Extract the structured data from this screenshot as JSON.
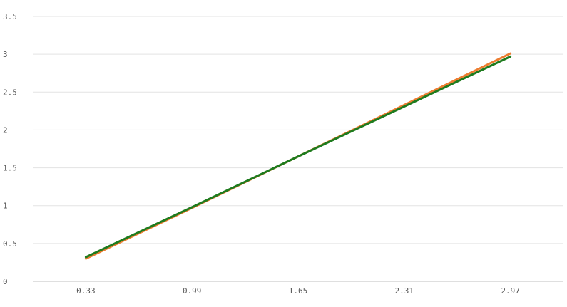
{
  "chart_data": {
    "type": "line",
    "title": "",
    "xlabel": "",
    "ylabel": "",
    "categories": [
      "0.33",
      "0.99",
      "1.65",
      "2.31",
      "2.97"
    ],
    "ylim": [
      0,
      3.5
    ],
    "yticks": [
      "0",
      "0.5",
      "1",
      "1.5",
      "2",
      "2.5",
      "3",
      "3.5"
    ],
    "grid": true,
    "legend": "none",
    "series": [
      {
        "color": "#ed7d31",
        "values": [
          0.3,
          0.97,
          1.65,
          2.33,
          3.01
        ]
      },
      {
        "color": "#1e7b1e",
        "values": [
          0.32,
          0.98,
          1.65,
          2.31,
          2.97
        ]
      }
    ]
  }
}
